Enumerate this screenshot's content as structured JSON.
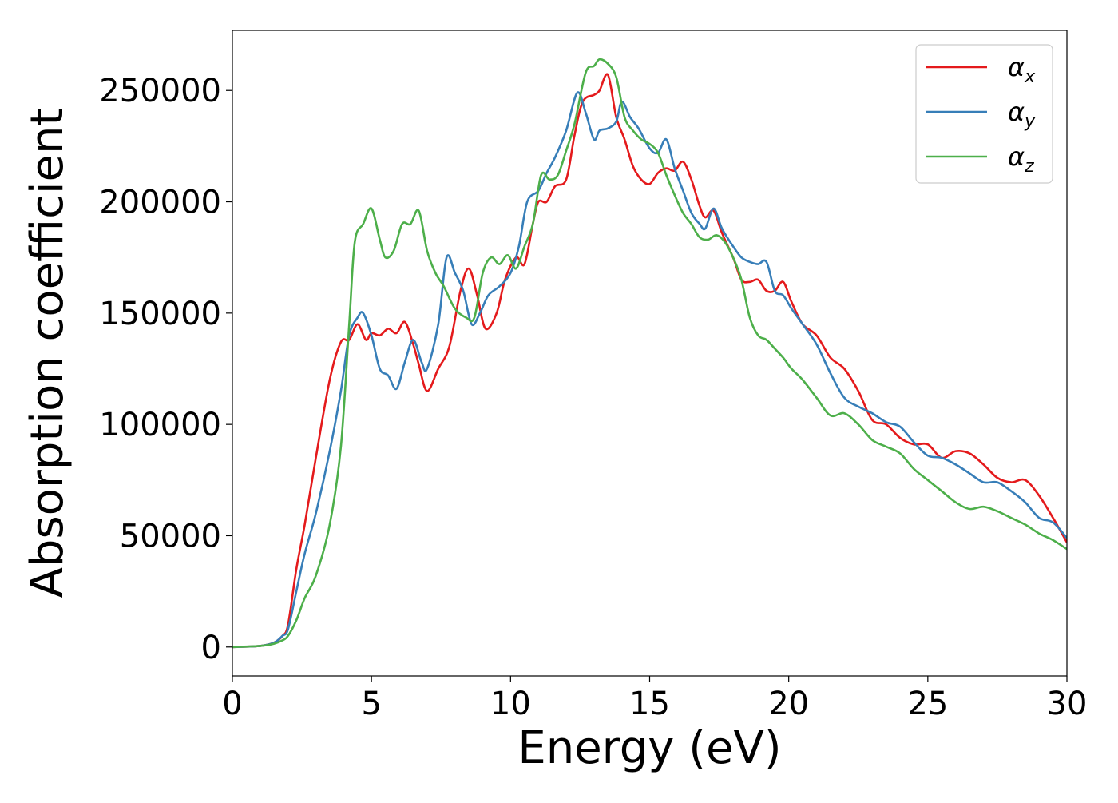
{
  "chart_data": {
    "type": "line",
    "title": "",
    "xlabel": "Energy (eV)",
    "ylabel": "Absorption coefficient",
    "xlim": [
      0,
      30
    ],
    "ylim": [
      -13000,
      277000
    ],
    "xticks": [
      0,
      5,
      10,
      15,
      20,
      25,
      30
    ],
    "xtick_labels": [
      "0",
      "5",
      "10",
      "15",
      "20",
      "25",
      "30"
    ],
    "yticks": [
      0,
      50000,
      100000,
      150000,
      200000,
      250000
    ],
    "ytick_labels": [
      "0",
      "50000",
      "100000",
      "150000",
      "200000",
      "250000"
    ],
    "grid": false,
    "legend_position": "top-right",
    "series": [
      {
        "name": "αx",
        "symbol": "α",
        "subscript": "x",
        "color": "#e41a1c",
        "x": [
          0,
          1,
          1.5,
          1.8,
          2,
          2.3,
          2.6,
          3,
          3.5,
          3.9,
          4.2,
          4.5,
          4.8,
          5,
          5.3,
          5.6,
          5.9,
          6.2,
          6.5,
          6.7,
          7,
          7.4,
          7.8,
          8.2,
          8.5,
          8.8,
          9.1,
          9.5,
          9.8,
          10.2,
          10.5,
          10.8,
          11,
          11.3,
          11.6,
          12,
          12.3,
          12.6,
          13,
          13.2,
          13.5,
          13.8,
          14.1,
          14.4,
          14.7,
          15,
          15.3,
          15.6,
          15.9,
          16.2,
          16.5,
          16.8,
          17,
          17.3,
          17.6,
          18,
          18.3,
          18.6,
          18.9,
          19.2,
          19.5,
          19.8,
          20.1,
          20.5,
          21,
          21.5,
          22,
          22.5,
          23,
          23.5,
          24,
          24.5,
          25,
          25.5,
          26,
          26.5,
          27,
          27.5,
          28,
          28.5,
          29,
          29.5,
          30
        ],
        "y": [
          0,
          500,
          2000,
          5000,
          10000,
          35000,
          55000,
          85000,
          120000,
          137000,
          138000,
          145000,
          138000,
          141000,
          140000,
          143000,
          141000,
          146000,
          136000,
          127000,
          115000,
          125000,
          135000,
          160000,
          170000,
          158000,
          143000,
          150000,
          165000,
          175000,
          172000,
          190000,
          200000,
          200000,
          207000,
          210000,
          230000,
          245000,
          248000,
          250000,
          257000,
          238000,
          228000,
          216000,
          210000,
          208000,
          213000,
          215000,
          214000,
          218000,
          210000,
          198000,
          193000,
          196000,
          186000,
          175000,
          165000,
          164000,
          165000,
          160000,
          160000,
          164000,
          155000,
          145000,
          140000,
          130000,
          125000,
          115000,
          102000,
          100000,
          94000,
          91000,
          91000,
          85000,
          88000,
          87000,
          82000,
          76000,
          74000,
          75000,
          68000,
          58000,
          47000
        ]
      },
      {
        "name": "αy",
        "symbol": "α",
        "subscript": "y",
        "color": "#377eb8",
        "x": [
          0,
          1,
          1.5,
          1.8,
          2,
          2.3,
          2.6,
          3,
          3.5,
          3.9,
          4.2,
          4.5,
          4.7,
          5,
          5.3,
          5.6,
          5.9,
          6.2,
          6.5,
          6.8,
          7,
          7.4,
          7.7,
          8,
          8.3,
          8.6,
          8.9,
          9.2,
          9.6,
          10,
          10.3,
          10.6,
          11,
          11.3,
          11.6,
          12,
          12.4,
          12.7,
          13,
          13.2,
          13.5,
          13.8,
          14,
          14.3,
          14.6,
          15,
          15.3,
          15.6,
          15.9,
          16.2,
          16.5,
          16.8,
          17,
          17.3,
          17.6,
          18,
          18.3,
          18.6,
          18.9,
          19.2,
          19.5,
          19.8,
          20.1,
          20.5,
          21,
          21.5,
          22,
          22.5,
          23,
          23.5,
          24,
          24.5,
          25,
          25.5,
          26,
          26.5,
          27,
          27.5,
          28,
          28.5,
          29,
          29.5,
          30
        ],
        "y": [
          0,
          500,
          2000,
          5000,
          8000,
          25000,
          42000,
          60000,
          88000,
          115000,
          140000,
          148000,
          150000,
          140000,
          125000,
          122000,
          116000,
          128000,
          138000,
          128000,
          125000,
          145000,
          175000,
          168000,
          160000,
          145000,
          150000,
          158000,
          162000,
          168000,
          180000,
          200000,
          205000,
          213000,
          220000,
          232000,
          249000,
          240000,
          228000,
          232000,
          233000,
          236000,
          245000,
          238000,
          233000,
          224000,
          222000,
          228000,
          215000,
          205000,
          195000,
          190000,
          188000,
          197000,
          188000,
          180000,
          175000,
          173000,
          172000,
          173000,
          160000,
          158000,
          152000,
          145000,
          136000,
          123000,
          112000,
          108000,
          105000,
          101000,
          99000,
          92000,
          86000,
          85000,
          82000,
          78000,
          74000,
          74000,
          70000,
          65000,
          58000,
          56000,
          49000
        ]
      },
      {
        "name": "αz",
        "symbol": "α",
        "subscript": "z",
        "color": "#4daf4a",
        "x": [
          0,
          1,
          1.5,
          1.8,
          2,
          2.3,
          2.6,
          3,
          3.5,
          3.9,
          4.2,
          4.4,
          4.7,
          5,
          5.3,
          5.5,
          5.8,
          6.1,
          6.4,
          6.7,
          7,
          7.3,
          7.6,
          8,
          8.4,
          8.7,
          9,
          9.3,
          9.6,
          9.9,
          10.2,
          10.5,
          10.8,
          11.1,
          11.4,
          11.7,
          12,
          12.3,
          12.7,
          13,
          13.2,
          13.5,
          13.8,
          14.1,
          14.4,
          14.7,
          15,
          15.3,
          15.6,
          15.9,
          16.2,
          16.5,
          16.8,
          17.1,
          17.4,
          17.7,
          18,
          18.3,
          18.6,
          18.9,
          19.2,
          19.5,
          19.8,
          20.1,
          20.5,
          21,
          21.5,
          22,
          22.5,
          23,
          23.5,
          24,
          24.5,
          25,
          25.5,
          26,
          26.5,
          27,
          27.5,
          28,
          28.5,
          29,
          29.5,
          30
        ],
        "y": [
          0,
          500,
          1500,
          3000,
          5000,
          12000,
          22000,
          32000,
          55000,
          90000,
          145000,
          182000,
          190000,
          197000,
          183000,
          175000,
          178000,
          190000,
          190000,
          196000,
          178000,
          168000,
          162000,
          152000,
          148000,
          148000,
          168000,
          175000,
          172000,
          176000,
          170000,
          180000,
          190000,
          212000,
          210000,
          212000,
          223000,
          235000,
          258000,
          261000,
          264000,
          262000,
          256000,
          238000,
          232000,
          228000,
          226000,
          222000,
          212000,
          203000,
          195000,
          190000,
          184000,
          183000,
          185000,
          182000,
          175000,
          165000,
          148000,
          140000,
          138000,
          134000,
          130000,
          125000,
          120000,
          112000,
          104000,
          105000,
          100000,
          93000,
          90000,
          87000,
          80000,
          75000,
          70000,
          65000,
          62000,
          63000,
          61000,
          58000,
          55000,
          51000,
          48000,
          44000
        ]
      }
    ]
  }
}
